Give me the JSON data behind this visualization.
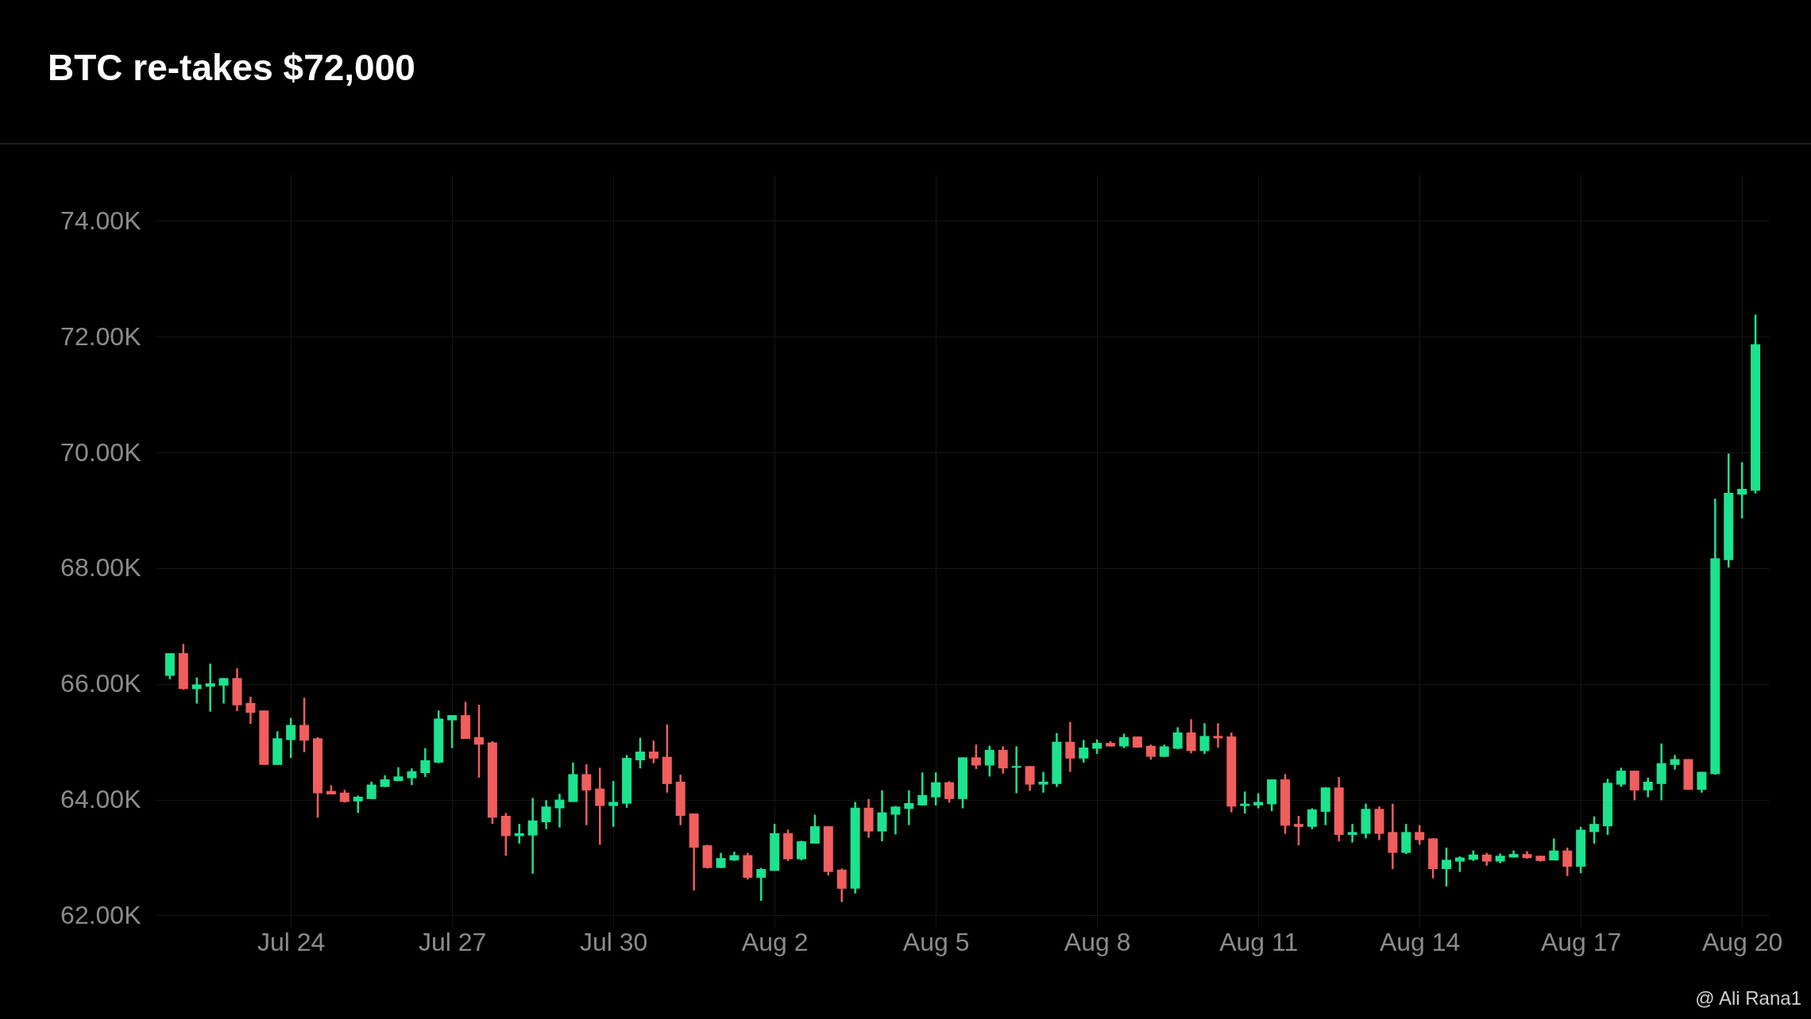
{
  "chart_data": {
    "type": "candlestick",
    "title": "BTC re-takes $72,000",
    "annotations": [
      "@ Ali Rana1"
    ],
    "categories": [
      null,
      null,
      null,
      null,
      null,
      null,
      null,
      null,
      null,
      "Jul 24",
      null,
      null,
      null,
      null,
      null,
      null,
      null,
      null,
      null,
      null,
      null,
      "Jul 27",
      null,
      null,
      null,
      null,
      null,
      null,
      null,
      null,
      null,
      null,
      null,
      "Jul 30",
      null,
      null,
      null,
      null,
      null,
      null,
      null,
      null,
      null,
      null,
      null,
      "Aug 2",
      null,
      null,
      null,
      null,
      null,
      null,
      null,
      null,
      null,
      null,
      null,
      "Aug 5",
      null,
      null,
      null,
      null,
      null,
      null,
      null,
      null,
      null,
      null,
      null,
      "Aug 8",
      null,
      null,
      null,
      null,
      null,
      null,
      null,
      null,
      null,
      null,
      null,
      "Aug 11",
      null,
      null,
      null,
      null,
      null,
      null,
      null,
      null,
      null,
      null,
      null,
      "Aug 14",
      null,
      null,
      null,
      null,
      null,
      null,
      null,
      null,
      null,
      null,
      null,
      "Aug 17",
      null,
      null,
      null,
      null,
      null,
      null,
      null,
      null,
      null,
      null,
      null,
      "Aug 20",
      null
    ],
    "ohlc": [
      [
        66.14,
        66.53,
        66.08,
        66.53
      ],
      [
        66.53,
        66.69,
        65.9,
        65.91
      ],
      [
        65.91,
        66.11,
        65.66,
        65.99
      ],
      [
        65.95,
        66.35,
        65.52,
        66.01
      ],
      [
        65.97,
        66.1,
        65.66,
        66.1
      ],
      [
        66.1,
        66.27,
        65.53,
        65.63
      ],
      [
        65.67,
        65.78,
        65.31,
        65.5
      ],
      [
        65.54,
        65.54,
        64.6,
        64.6
      ],
      [
        64.6,
        65.18,
        64.6,
        65.06
      ],
      [
        65.03,
        65.41,
        64.72,
        65.29
      ],
      [
        65.29,
        65.76,
        64.82,
        65.02
      ],
      [
        65.06,
        65.08,
        63.69,
        64.11
      ],
      [
        64.15,
        64.25,
        64.09,
        64.09
      ],
      [
        64.12,
        64.17,
        63.95,
        63.96
      ],
      [
        63.97,
        64.07,
        63.77,
        64.05
      ],
      [
        64.01,
        64.31,
        64.01,
        64.26
      ],
      [
        64.22,
        64.42,
        64.22,
        64.35
      ],
      [
        64.32,
        64.56,
        64.32,
        64.4
      ],
      [
        64.37,
        64.54,
        64.25,
        64.49
      ],
      [
        64.46,
        64.89,
        64.39,
        64.68
      ],
      [
        64.64,
        65.54,
        64.63,
        65.4
      ],
      [
        65.37,
        65.46,
        64.89,
        65.46
      ],
      [
        65.46,
        65.69,
        65.05,
        65.05
      ],
      [
        65.08,
        65.64,
        64.38,
        64.95
      ],
      [
        64.99,
        65.01,
        63.58,
        63.69
      ],
      [
        63.72,
        63.77,
        63.03,
        63.37
      ],
      [
        63.37,
        63.58,
        63.24,
        63.42
      ],
      [
        63.38,
        64.03,
        62.72,
        63.64
      ],
      [
        63.61,
        63.99,
        63.49,
        63.88
      ],
      [
        63.85,
        64.1,
        63.52,
        64.0
      ],
      [
        63.96,
        64.64,
        63.96,
        64.44
      ],
      [
        64.44,
        64.61,
        63.56,
        64.16
      ],
      [
        64.19,
        64.55,
        63.22,
        63.89
      ],
      [
        63.89,
        64.32,
        63.53,
        63.96
      ],
      [
        63.93,
        64.77,
        63.86,
        64.72
      ],
      [
        64.68,
        65.07,
        64.54,
        64.83
      ],
      [
        64.83,
        65.02,
        64.63,
        64.71
      ],
      [
        64.74,
        65.3,
        64.12,
        64.27
      ],
      [
        64.31,
        64.43,
        63.56,
        63.72
      ],
      [
        63.76,
        63.76,
        62.43,
        63.17
      ],
      [
        63.21,
        63.22,
        62.81,
        62.82
      ],
      [
        62.82,
        63.08,
        62.82,
        62.99
      ],
      [
        62.95,
        63.1,
        62.94,
        63.04
      ],
      [
        63.04,
        63.08,
        62.62,
        62.65
      ],
      [
        62.65,
        62.82,
        62.25,
        62.8
      ],
      [
        62.77,
        63.58,
        62.77,
        63.42
      ],
      [
        63.42,
        63.48,
        62.94,
        62.97
      ],
      [
        62.97,
        63.29,
        62.95,
        63.28
      ],
      [
        63.24,
        63.74,
        63.24,
        63.54
      ],
      [
        63.54,
        63.54,
        62.69,
        62.75
      ],
      [
        62.79,
        62.81,
        62.23,
        62.46
      ],
      [
        62.46,
        63.96,
        62.38,
        63.86
      ],
      [
        63.86,
        64.01,
        63.34,
        63.45
      ],
      [
        63.45,
        64.16,
        63.28,
        63.78
      ],
      [
        63.74,
        63.89,
        63.4,
        63.88
      ],
      [
        63.84,
        64.16,
        63.56,
        63.94
      ],
      [
        63.9,
        64.47,
        63.9,
        64.08
      ],
      [
        64.04,
        64.47,
        63.9,
        64.3
      ],
      [
        64.3,
        64.32,
        63.95,
        64.01
      ],
      [
        64.01,
        64.73,
        63.85,
        64.73
      ],
      [
        64.73,
        64.95,
        64.53,
        64.59
      ],
      [
        64.59,
        64.93,
        64.4,
        64.86
      ],
      [
        64.86,
        64.92,
        64.45,
        64.54
      ],
      [
        64.55,
        64.92,
        64.11,
        64.58
      ],
      [
        64.58,
        64.58,
        64.15,
        64.26
      ],
      [
        64.26,
        64.48,
        64.12,
        64.31
      ],
      [
        64.27,
        65.15,
        64.22,
        65.0
      ],
      [
        65.0,
        65.34,
        64.48,
        64.71
      ],
      [
        64.71,
        65.03,
        64.64,
        64.9
      ],
      [
        64.88,
        65.04,
        64.79,
        64.98
      ],
      [
        64.98,
        65.01,
        64.92,
        64.92
      ],
      [
        64.92,
        65.14,
        64.89,
        65.08
      ],
      [
        65.09,
        65.09,
        64.9,
        64.9
      ],
      [
        64.93,
        64.95,
        64.69,
        64.74
      ],
      [
        64.74,
        64.95,
        64.74,
        64.92
      ],
      [
        64.88,
        65.25,
        64.87,
        65.16
      ],
      [
        65.16,
        65.39,
        64.8,
        64.84
      ],
      [
        64.84,
        65.32,
        64.79,
        65.1
      ],
      [
        65.1,
        65.32,
        64.9,
        65.06
      ],
      [
        65.09,
        65.16,
        63.78,
        63.88
      ],
      [
        63.89,
        64.14,
        63.76,
        63.93
      ],
      [
        63.9,
        64.11,
        63.85,
        63.96
      ],
      [
        63.92,
        64.35,
        63.8,
        64.35
      ],
      [
        64.35,
        64.44,
        63.41,
        63.55
      ],
      [
        63.58,
        63.72,
        63.21,
        63.53
      ],
      [
        63.53,
        63.85,
        63.49,
        63.83
      ],
      [
        63.79,
        64.21,
        63.56,
        64.21
      ],
      [
        64.21,
        64.39,
        63.28,
        63.39
      ],
      [
        63.39,
        63.58,
        63.26,
        63.44
      ],
      [
        63.41,
        63.93,
        63.33,
        63.84
      ],
      [
        63.84,
        63.88,
        63.3,
        63.41
      ],
      [
        63.44,
        63.93,
        62.8,
        63.08
      ],
      [
        63.08,
        63.58,
        63.06,
        63.44
      ],
      [
        63.44,
        63.56,
        63.22,
        63.3
      ],
      [
        63.33,
        63.33,
        62.64,
        62.8
      ],
      [
        62.8,
        63.17,
        62.5,
        62.96
      ],
      [
        62.93,
        63.02,
        62.75,
        63.0
      ],
      [
        62.96,
        63.12,
        62.94,
        63.05
      ],
      [
        63.05,
        63.08,
        62.86,
        62.93
      ],
      [
        62.93,
        63.07,
        62.9,
        63.03
      ],
      [
        63.0,
        63.12,
        63.0,
        63.06
      ],
      [
        63.06,
        63.11,
        62.98,
        62.99
      ],
      [
        63.03,
        63.03,
        62.93,
        62.94
      ],
      [
        62.95,
        63.33,
        62.95,
        63.12
      ],
      [
        63.12,
        63.17,
        62.68,
        62.84
      ],
      [
        62.84,
        63.53,
        62.73,
        63.48
      ],
      [
        63.44,
        63.71,
        63.24,
        63.58
      ],
      [
        63.54,
        64.36,
        63.39,
        64.29
      ],
      [
        64.26,
        64.55,
        64.22,
        64.5
      ],
      [
        64.5,
        64.5,
        63.99,
        64.16
      ],
      [
        64.16,
        64.38,
        64.04,
        64.31
      ],
      [
        64.27,
        64.97,
        63.99,
        64.63
      ],
      [
        64.6,
        64.77,
        64.52,
        64.7
      ],
      [
        64.7,
        64.7,
        64.17,
        64.17
      ],
      [
        64.17,
        64.48,
        64.12,
        64.48
      ],
      [
        64.44,
        69.2,
        64.43,
        68.17
      ],
      [
        68.14,
        69.98,
        68.01,
        69.3
      ],
      [
        69.27,
        69.83,
        68.86,
        69.37
      ],
      [
        69.34,
        72.38,
        69.29,
        71.87
      ]
    ],
    "colors": [
      "#1de28e",
      "#f05e5e",
      "#1de28e",
      "#1de28e",
      "#1de28e",
      "#f05e5e",
      "#f05e5e",
      "#f05e5e",
      "#1de28e",
      "#1de28e",
      "#f05e5e",
      "#f05e5e",
      "#f05e5e",
      "#f05e5e",
      "#1de28e",
      "#1de28e",
      "#1de28e",
      "#1de28e",
      "#1de28e",
      "#1de28e",
      "#1de28e",
      "#1de28e",
      "#f05e5e",
      "#f05e5e",
      "#f05e5e",
      "#f05e5e",
      "#1de28e",
      "#1de28e",
      "#1de28e",
      "#1de28e",
      "#1de28e",
      "#f05e5e",
      "#f05e5e",
      "#1de28e",
      "#1de28e",
      "#1de28e",
      "#f05e5e",
      "#f05e5e",
      "#f05e5e",
      "#f05e5e",
      "#f05e5e",
      "#1de28e",
      "#1de28e",
      "#f05e5e",
      "#1de28e",
      "#1de28e",
      "#f05e5e",
      "#1de28e",
      "#1de28e",
      "#f05e5e",
      "#f05e5e",
      "#1de28e",
      "#f05e5e",
      "#1de28e",
      "#1de28e",
      "#1de28e",
      "#1de28e",
      "#1de28e",
      "#f05e5e",
      "#1de28e",
      "#f05e5e",
      "#1de28e",
      "#f05e5e",
      "#1de28e",
      "#f05e5e",
      "#1de28e",
      "#1de28e",
      "#f05e5e",
      "#1de28e",
      "#1de28e",
      "#f05e5e",
      "#1de28e",
      "#f05e5e",
      "#f05e5e",
      "#1de28e",
      "#1de28e",
      "#f05e5e",
      "#1de28e",
      "#f05e5e",
      "#f05e5e",
      "#1de28e",
      "#1de28e",
      "#1de28e",
      "#f05e5e",
      "#f05e5e",
      "#1de28e",
      "#1de28e",
      "#f05e5e",
      "#1de28e",
      "#1de28e",
      "#f05e5e",
      "#f05e5e",
      "#1de28e",
      "#f05e5e",
      "#f05e5e",
      "#1de28e",
      "#1de28e",
      "#1de28e",
      "#f05e5e",
      "#1de28e",
      "#1de28e",
      "#f05e5e",
      "#f05e5e",
      "#1de28e",
      "#f05e5e",
      "#1de28e",
      "#1de28e",
      "#1de28e",
      "#1de28e",
      "#f05e5e",
      "#1de28e",
      "#1de28e",
      "#1de28e",
      "#f05e5e",
      "#1de28e",
      "#1de28e",
      "#1de28e",
      "#1de28e",
      "#1de28e"
    ],
    "ylim": [
      61.8,
      74.8
    ],
    "yticks": [
      {
        "value": 62,
        "label": "62.00K"
      },
      {
        "value": 64,
        "label": "64.00K"
      },
      {
        "value": 66,
        "label": "66.00K"
      },
      {
        "value": 68,
        "label": "68.00K"
      },
      {
        "value": 70,
        "label": "70.00K"
      },
      {
        "value": 72,
        "label": "72.00K"
      },
      {
        "value": 74,
        "label": "74.00K"
      }
    ],
    "grid": true
  }
}
